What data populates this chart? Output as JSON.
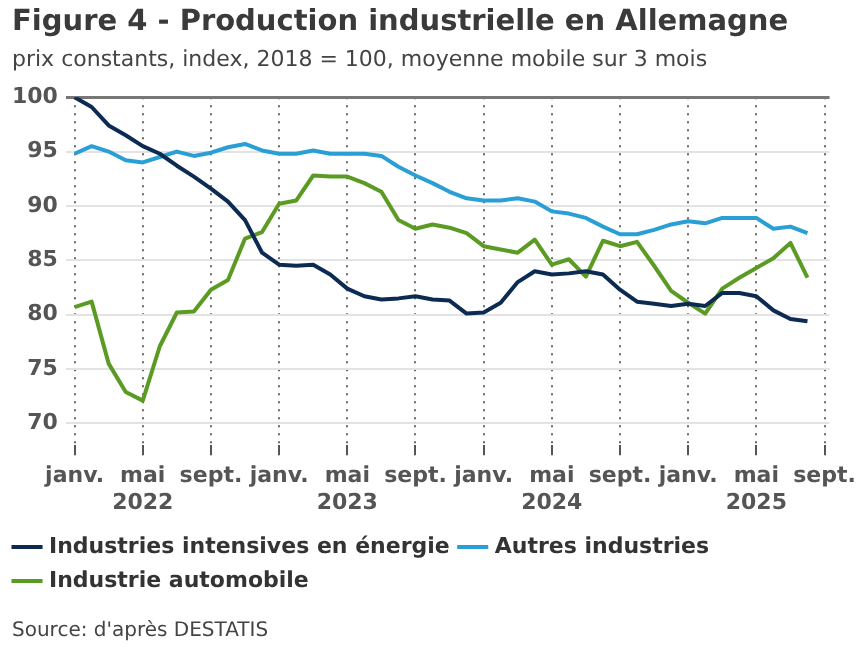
{
  "chart_data": {
    "type": "line",
    "title": "Figure 4 - Production industrielle en Allemagne",
    "subtitle": "prix constants, index, 2018 = 100, moyenne mobile sur 3 mois",
    "x": [
      "2022-01",
      "2022-02",
      "2022-03",
      "2022-04",
      "2022-05",
      "2022-06",
      "2022-07",
      "2022-08",
      "2022-09",
      "2022-10",
      "2022-11",
      "2022-12",
      "2023-01",
      "2023-02",
      "2023-03",
      "2023-04",
      "2023-05",
      "2023-06",
      "2023-07",
      "2023-08",
      "2023-09",
      "2023-10",
      "2023-11",
      "2023-12",
      "2024-01",
      "2024-02",
      "2024-03",
      "2024-04",
      "2024-05",
      "2024-06",
      "2024-07",
      "2024-08",
      "2024-09",
      "2024-10",
      "2024-11",
      "2024-12",
      "2025-01",
      "2025-02",
      "2025-03",
      "2025-04",
      "2025-05",
      "2025-06",
      "2025-07",
      "2025-08"
    ],
    "xlim": [
      "2021-12-16",
      "2025-09-10"
    ],
    "xticks": [
      {
        "value": "2022-01",
        "label": "janv."
      },
      {
        "value": "2022-05",
        "label": "mai\n2022"
      },
      {
        "value": "2022-09",
        "label": "sept."
      },
      {
        "value": "2023-01",
        "label": "janv."
      },
      {
        "value": "2023-05",
        "label": "mai\n2023"
      },
      {
        "value": "2023-09",
        "label": "sept."
      },
      {
        "value": "2024-01",
        "label": "janv."
      },
      {
        "value": "2024-05",
        "label": "mai\n2024"
      },
      {
        "value": "2024-09",
        "label": "sept."
      },
      {
        "value": "2025-01",
        "label": "janv."
      },
      {
        "value": "2025-05",
        "label": "mai\n2025"
      },
      {
        "value": "2025-09",
        "label": "sept."
      }
    ],
    "ylim": [
      68,
      100
    ],
    "yticks": [
      70,
      75,
      80,
      85,
      90,
      95,
      100
    ],
    "grid": true,
    "legend": "bottom",
    "marker": "none",
    "line_style": "solid",
    "series": [
      {
        "name": "Industries intensives en énergie",
        "color": "#0d2b52",
        "values": [
          100,
          99.1,
          97.4,
          96.5,
          95.5,
          94.8,
          93.7,
          92.7,
          91.6,
          90.4,
          88.7,
          85.7,
          84.6,
          84.5,
          84.6,
          83.7,
          82.4,
          81.7,
          81.4,
          81.5,
          81.7,
          81.4,
          81.3,
          80.1,
          80.2,
          81.1,
          83,
          84,
          83.7,
          83.8,
          84,
          83.7,
          82.3,
          81.2,
          81,
          80.8,
          81,
          80.8,
          82,
          82,
          81.7,
          80.4,
          79.6,
          79.4
        ]
      },
      {
        "name": "Autres industries",
        "color": "#2a9fd6",
        "values": [
          94.8,
          95.5,
          95,
          94.2,
          94,
          94.5,
          95,
          94.6,
          94.9,
          95.4,
          95.7,
          95.1,
          94.8,
          94.8,
          95.1,
          94.8,
          94.8,
          94.8,
          94.6,
          93.6,
          92.8,
          92.1,
          91.3,
          90.7,
          90.5,
          90.5,
          90.7,
          90.4,
          89.5,
          89.3,
          88.9,
          88.1,
          87.4,
          87.4,
          87.8,
          88.3,
          88.6,
          88.4,
          88.9,
          88.9,
          88.9,
          87.9,
          88.1,
          87.5
        ]
      },
      {
        "name": "Industrie automobile",
        "color": "#5b9b24",
        "values": [
          80.7,
          81.2,
          75.5,
          72.9,
          72.1,
          77.1,
          80.2,
          80.3,
          82.3,
          83.2,
          87,
          87.6,
          90.2,
          90.5,
          92.8,
          92.7,
          92.7,
          92.1,
          91.3,
          88.7,
          87.9,
          88.3,
          88,
          87.5,
          86.3,
          86,
          85.7,
          86.9,
          84.6,
          85.1,
          83.5,
          86.8,
          86.3,
          86.7,
          84.5,
          82.2,
          81.1,
          80.1,
          82.4,
          83.4,
          84.3,
          85.2,
          86.6,
          83.4
        ]
      }
    ],
    "annotations": [
      "Source: d'après DESTATIS"
    ]
  }
}
